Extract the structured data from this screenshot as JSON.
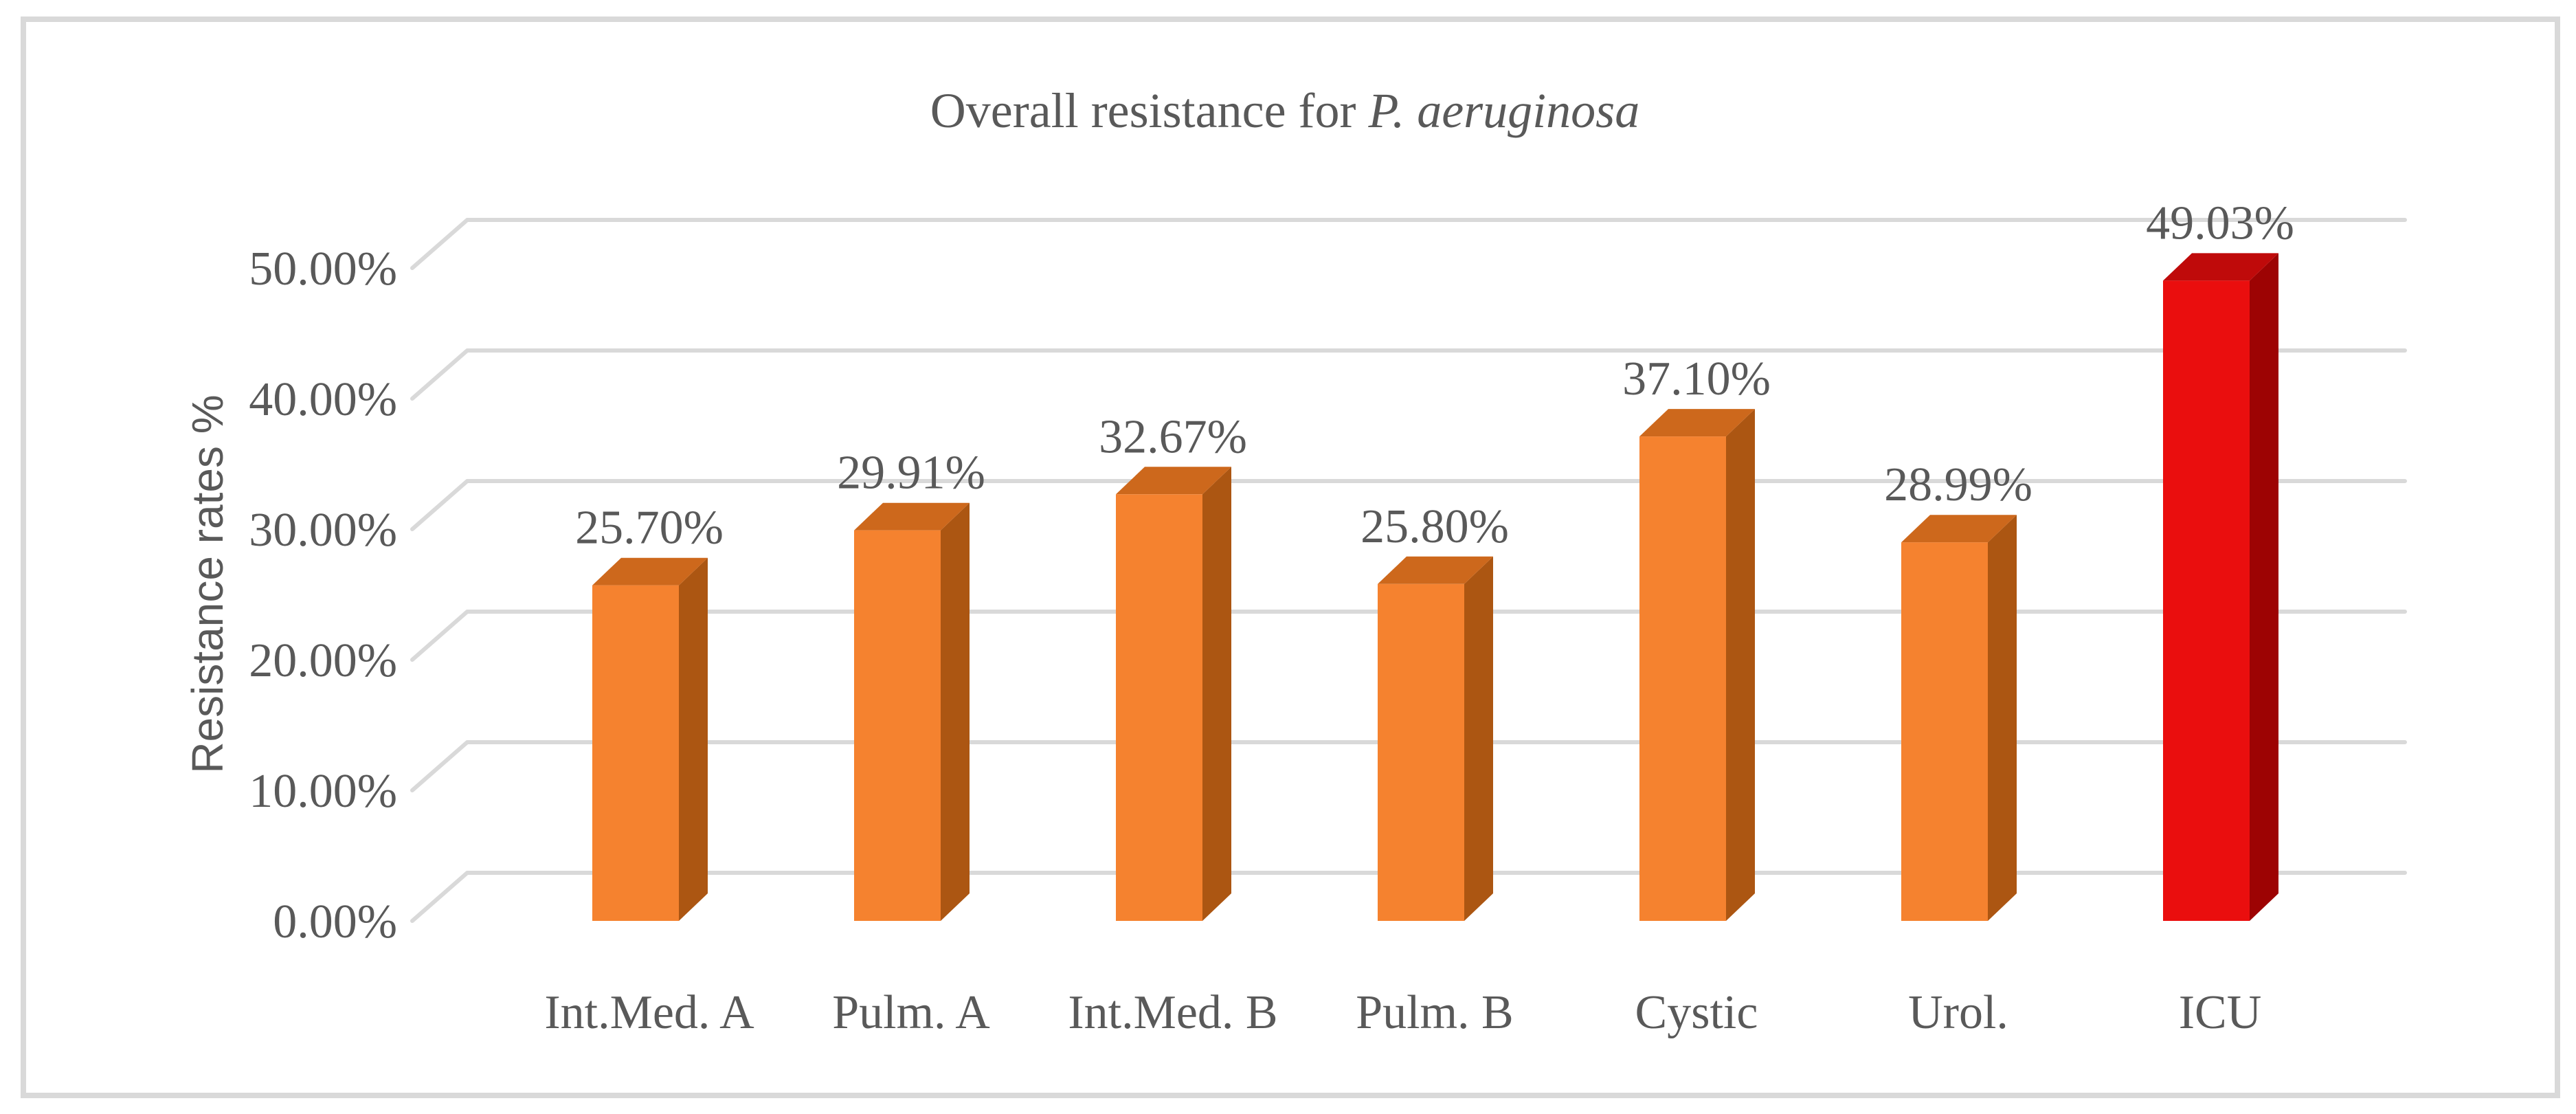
{
  "page": {
    "background_color": "#FFFFFF",
    "frame_border_color": "#D9D9D9",
    "text_color": "#595959",
    "gridline_color": "#D9D9D9"
  },
  "chart_data": {
    "type": "bar",
    "projection": "3d-oblique",
    "title_prefix": "Overall resistance for ",
    "title_italic": "P. aeruginosa",
    "ylabel": "Resistance rates %",
    "xlabel": "",
    "categories": [
      "Int.Med. A",
      "Pulm. A",
      "Int.Med. B",
      "Pulm. B",
      "Cystic",
      "Urol.",
      "ICU"
    ],
    "values": [
      25.7,
      29.91,
      32.67,
      25.8,
      37.1,
      28.99,
      49.03
    ],
    "data_labels": [
      "25.70%",
      "29.91%",
      "32.67%",
      "25.80%",
      "37.10%",
      "28.99%",
      "49.03%"
    ],
    "ytick_values": [
      0,
      10,
      20,
      30,
      40,
      50
    ],
    "ytick_labels": [
      "0.00%",
      "10.00%",
      "20.00%",
      "30.00%",
      "40.00%",
      "50.00%"
    ],
    "ylim": [
      0,
      50
    ],
    "grid": true,
    "legend": "none",
    "bar_color_keys": [
      "orange",
      "orange",
      "orange",
      "orange",
      "orange",
      "orange",
      "red"
    ],
    "colors": {
      "orange": {
        "front": "#F5822F",
        "top": "#CD681C",
        "side": "#AC5612"
      },
      "red": {
        "front": "#EA0E0E",
        "top": "#BF0A0A",
        "side": "#9D0303"
      }
    }
  }
}
